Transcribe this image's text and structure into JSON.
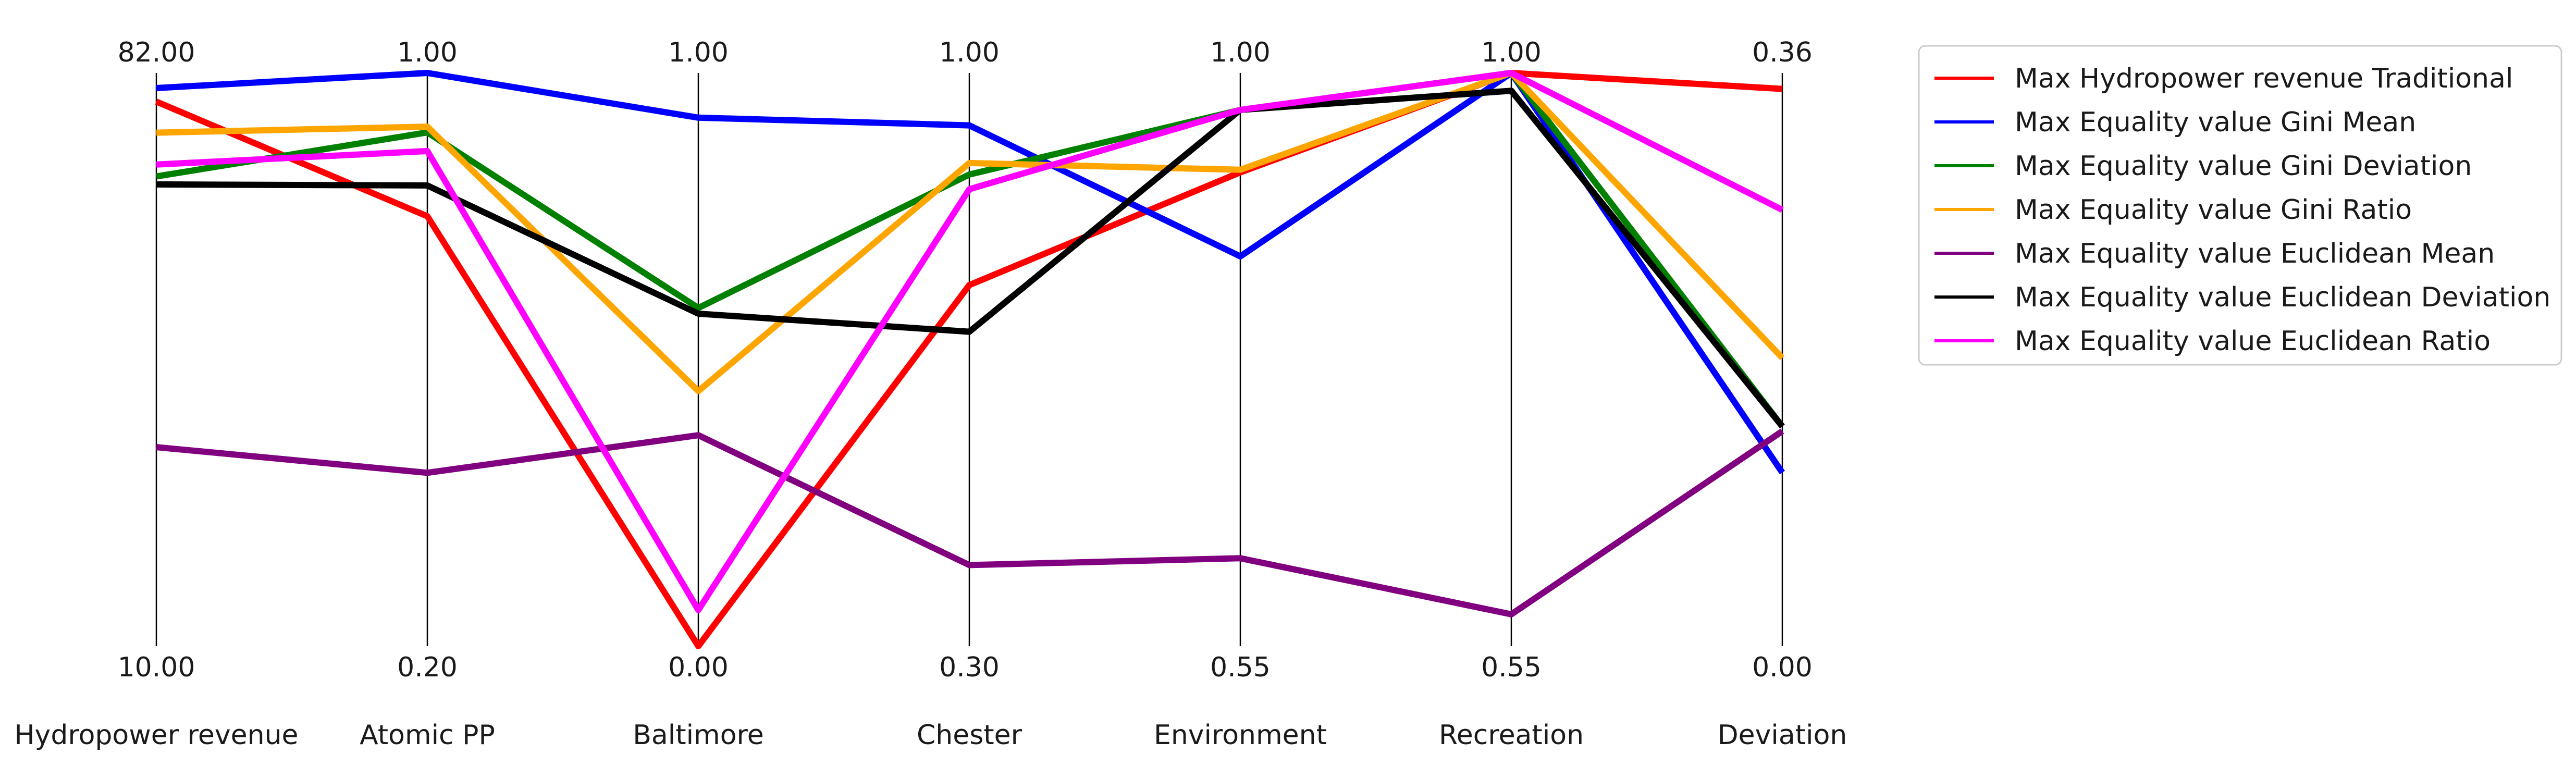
{
  "chart_data": {
    "type": "line",
    "subtype": "parallel-coordinates",
    "title": "",
    "axes": [
      {
        "name": "Hydropower revenue",
        "min": 10.0,
        "max": 82.0,
        "min_label": "10.00",
        "max_label": "82.00"
      },
      {
        "name": "Atomic PP",
        "min": 0.2,
        "max": 1.0,
        "min_label": "0.20",
        "max_label": "1.00"
      },
      {
        "name": "Baltimore",
        "min": 0.0,
        "max": 1.0,
        "min_label": "0.00",
        "max_label": "1.00"
      },
      {
        "name": "Chester",
        "min": 0.3,
        "max": 1.0,
        "min_label": "0.30",
        "max_label": "1.00"
      },
      {
        "name": "Environment",
        "min": 0.55,
        "max": 1.0,
        "min_label": "0.55",
        "max_label": "1.00"
      },
      {
        "name": "Recreation",
        "min": 0.55,
        "max": 1.0,
        "min_label": "0.55",
        "max_label": "1.00"
      },
      {
        "name": "Deviation",
        "min": 0.0,
        "max": 0.36,
        "min_label": "0.00",
        "max_label": "0.36"
      }
    ],
    "series": [
      {
        "name": "Max Hydropower revenue Traditional",
        "color": "#ff0000",
        "values": [
          78.4,
          0.8,
          0.0,
          0.741,
          0.922,
          1.0,
          0.35
        ]
      },
      {
        "name": "Max Equality value Gini Mean",
        "color": "#0000ff",
        "values": [
          80.1,
          1.0,
          0.922,
          0.936,
          0.856,
          1.0,
          0.109
        ]
      },
      {
        "name": "Max Equality value Gini Deviation",
        "color": "#008000",
        "values": [
          69.0,
          0.917,
          0.59,
          0.876,
          0.971,
          1.0,
          0.138
        ]
      },
      {
        "name": "Max Equality value Gini Ratio",
        "color": "#ffa500",
        "values": [
          74.5,
          0.925,
          0.445,
          0.89,
          0.924,
          1.0,
          0.181
        ]
      },
      {
        "name": "Max Equality value Euclidean Mean",
        "color": "#800080",
        "values": [
          35.0,
          0.442,
          0.368,
          0.399,
          0.619,
          0.575,
          0.135
        ]
      },
      {
        "name": "Max Equality value Euclidean Deviation",
        "color": "#000000",
        "values": [
          68.0,
          0.843,
          0.58,
          0.684,
          0.971,
          0.986,
          0.138
        ]
      },
      {
        "name": "Max Equality value Euclidean Ratio",
        "color": "#ff00ff",
        "values": [
          70.5,
          0.891,
          0.063,
          0.858,
          0.971,
          1.0,
          0.274
        ]
      }
    ],
    "legend_position": "top-right",
    "grid": false
  }
}
